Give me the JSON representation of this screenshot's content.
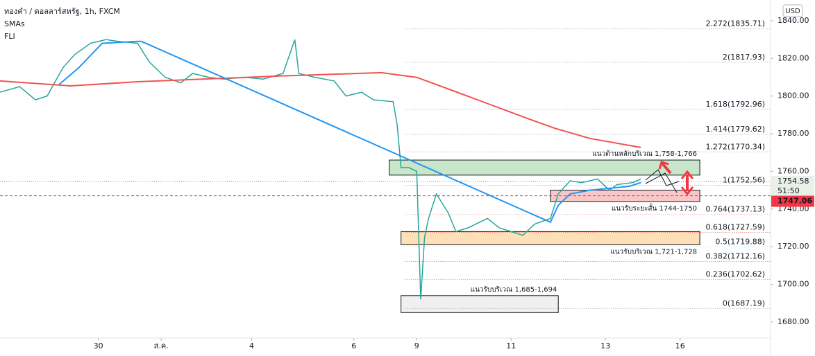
{
  "chart_data": {
    "type": "line",
    "title": "ทองคำ / ดอลลาร์สหรัฐ, 1h, FXCM",
    "indicators": [
      "SMAs",
      "FLI"
    ],
    "currency": "USD",
    "xlim": [
      0,
      196
    ],
    "ylim": [
      1672.6,
      1851
    ],
    "xticks": [
      {
        "value": 25,
        "label": "30"
      },
      {
        "value": 41,
        "label": "ส.ค."
      },
      {
        "value": 64,
        "label": "4"
      },
      {
        "value": 90,
        "label": "6"
      },
      {
        "value": 106,
        "label": "9"
      },
      {
        "value": 130,
        "label": "11"
      },
      {
        "value": 154,
        "label": "13"
      },
      {
        "value": 173,
        "label": "16"
      }
    ],
    "yticks": [
      {
        "value": 1680,
        "label": "1680.00"
      },
      {
        "value": 1700,
        "label": "1700.00"
      },
      {
        "value": 1720,
        "label": "1720.00"
      },
      {
        "value": 1740,
        "label": "1740.00"
      },
      {
        "value": 1760,
        "label": "1760.00"
      },
      {
        "value": 1780,
        "label": "1780.00"
      },
      {
        "value": 1800,
        "label": "1800.00"
      },
      {
        "value": 1820,
        "label": "1820.00"
      },
      {
        "value": 1840,
        "label": "1840.00"
      }
    ],
    "series": [
      {
        "color": "#26a69a",
        "width": 1.5,
        "x": [
          0,
          5,
          9,
          12,
          16,
          19,
          23,
          27,
          30,
          35,
          38,
          42,
          46,
          49,
          53,
          57,
          62,
          67,
          72,
          75,
          76,
          80,
          85,
          88,
          92,
          95,
          100,
          101,
          102,
          104,
          106,
          107,
          108,
          109,
          111,
          114,
          116,
          119,
          124,
          127,
          130,
          133,
          136,
          140,
          142,
          145,
          148,
          152,
          155,
          157,
          161,
          163
        ],
        "values": [
          1802,
          1805,
          1798,
          1800,
          1815,
          1822,
          1828,
          1830,
          1829,
          1828,
          1818,
          1810,
          1807,
          1812,
          1810,
          1809,
          1810,
          1809,
          1812,
          1830,
          1812,
          1810,
          1808,
          1800,
          1802,
          1798,
          1797,
          1785,
          1762,
          1762,
          1760,
          1692,
          1725,
          1735,
          1748,
          1738,
          1728,
          1730,
          1735,
          1730,
          1728,
          1726,
          1732,
          1735,
          1748,
          1755,
          1754,
          1756,
          1750,
          1753,
          1754,
          1756
        ]
      },
      {
        "color": "#f05350",
        "width": 2,
        "x": [
          0,
          18,
          35,
          71,
          97,
          106,
          115,
          124,
          133,
          141,
          150,
          163
        ],
        "values": [
          1808,
          1805.4,
          1807.6,
          1810.6,
          1812.4,
          1809.9,
          1803,
          1796,
          1789,
          1783,
          1777.5,
          1772.7
        ]
      },
      {
        "color": "#2196f3",
        "width": 2,
        "x": [
          15,
          20,
          26,
          35,
          36,
          140,
          142,
          145,
          150,
          155,
          160,
          163
        ],
        "values": [
          1806,
          1815,
          1828,
          1829,
          1829,
          1733,
          1742,
          1748,
          1750,
          1751,
          1752,
          1754
        ]
      }
    ],
    "fib_levels": [
      {
        "value": 1835.71,
        "label": "2.272(1835.71)",
        "color": "#9e9e9e"
      },
      {
        "value": 1817.93,
        "label": "2(1817.93)",
        "color": "#9e9e9e"
      },
      {
        "value": 1792.96,
        "label": "1.618(1792.96)",
        "color": "#4aa3df"
      },
      {
        "value": 1779.62,
        "label": "1.414(1779.62)",
        "color": "#9e9e9e"
      },
      {
        "value": 1770.34,
        "label": "1.272(1770.34)",
        "color": "#9e9e9e"
      },
      {
        "value": 1752.56,
        "label": "1(1752.56)",
        "color": "#4caf50"
      },
      {
        "value": 1737.13,
        "label": "0.764(1737.13)",
        "color": "#f19a9a"
      },
      {
        "value": 1727.59,
        "label": "0.618(1727.59)",
        "color": "#e74c3c"
      },
      {
        "value": 1719.88,
        "label": "0.5(1719.88)",
        "color": "#80d8ff"
      },
      {
        "value": 1712.16,
        "label": "0.382(1712.16)",
        "color": "#e74c3c"
      },
      {
        "value": 1702.62,
        "label": "0.236(1702.62)",
        "color": "#4caf50"
      },
      {
        "value": 1687.19,
        "label": "0(1687.19)",
        "color": "#9e9e9e"
      }
    ],
    "zones": [
      {
        "low": 1758,
        "high": 1766,
        "x0": 99,
        "x1": 178,
        "color": "#c8e6c9",
        "label": "แนวต้านหลักบริเวณ 1,758-1,766"
      },
      {
        "low": 1744,
        "high": 1750,
        "x0": 140,
        "x1": 178,
        "color": "#f8c8c8",
        "label": "แนวรับระยะสั้น 1744-1750"
      },
      {
        "low": 1721,
        "high": 1728,
        "x0": 102,
        "x1": 178,
        "color": "#fde0b8",
        "label": "แนวรับบริเวณ 1,721-1,728"
      },
      {
        "low": 1685,
        "high": 1694,
        "x0": 102,
        "x1": 142,
        "color": "#f0f0f0",
        "label": "แนวรับบริเวณ 1,685-1,694"
      }
    ],
    "last_price": {
      "value": 1754.58,
      "label": "1754.58",
      "countdown": "51:50"
    },
    "reference_price": {
      "value": 1747.06,
      "label": "1747.06"
    }
  }
}
